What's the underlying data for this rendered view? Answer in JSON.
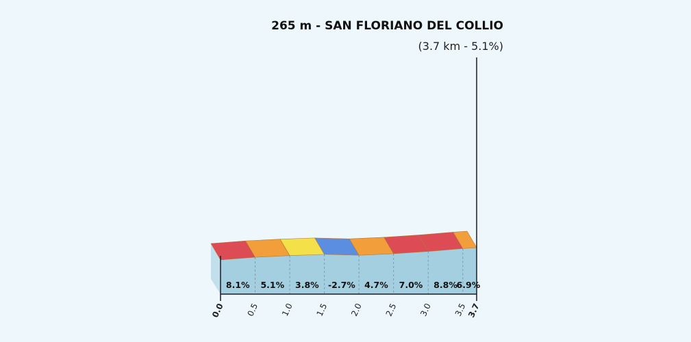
{
  "header": {
    "title": "265 m - SAN FLORIANO DEL COLLIO",
    "subtitle": "(3.7 km - 5.1%)"
  },
  "chart_data": {
    "type": "area",
    "title": "265 m - SAN FLORIANO DEL COLLIO",
    "subtitle": "(3.7 km - 5.1%)",
    "xlabel": "",
    "ylabel": "",
    "x_unit": "km",
    "xlim": [
      0.0,
      3.7
    ],
    "x_ticks": [
      0.0,
      0.5,
      1.0,
      1.5,
      2.0,
      2.5,
      3.0,
      3.5,
      3.7
    ],
    "x_tick_labels": [
      "0.0",
      "0.5",
      "1.0",
      "1.5",
      "2.0",
      "2.5",
      "3.0",
      "3.5",
      "3.7"
    ],
    "grid": "vertical dashed lines at segment boundaries",
    "segments": [
      {
        "from": 0.0,
        "to": 0.5,
        "gradient": 8.1,
        "label": "8.1%",
        "color": "#dd4b55"
      },
      {
        "from": 0.5,
        "to": 1.0,
        "gradient": 5.1,
        "label": "5.1%",
        "color": "#f29e3a"
      },
      {
        "from": 1.0,
        "to": 1.5,
        "gradient": 3.8,
        "label": "3.8%",
        "color": "#f4e14a"
      },
      {
        "from": 1.5,
        "to": 2.0,
        "gradient": -2.7,
        "label": "-2.7%",
        "color": "#5b8de0"
      },
      {
        "from": 2.0,
        "to": 2.5,
        "gradient": 4.7,
        "label": "4.7%",
        "color": "#f29e3a"
      },
      {
        "from": 2.5,
        "to": 3.0,
        "gradient": 7.0,
        "label": "7.0%",
        "color": "#dd4b55"
      },
      {
        "from": 3.0,
        "to": 3.5,
        "gradient": 8.8,
        "label": "8.8%",
        "color": "#dd4b55"
      },
      {
        "from": 3.5,
        "to": 3.7,
        "gradient": 6.9,
        "label": "6.9%",
        "color": "#f29e3a"
      }
    ],
    "colors": {
      "area_fill": "#a3cfe0",
      "area_side": "#c2e0ec",
      "grid": "#7f9aa8",
      "axis": "#1a1a2a"
    }
  }
}
